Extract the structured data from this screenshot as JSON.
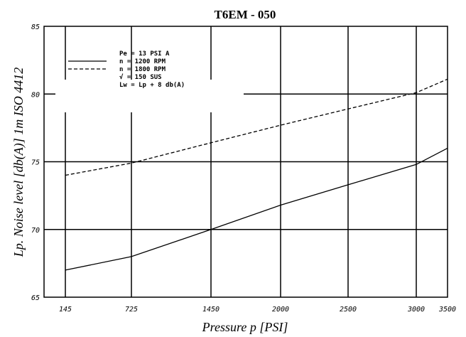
{
  "chart_data": {
    "type": "line",
    "title": "T6EM - 050",
    "xlabel": "Pressure p [PSI]",
    "ylabel": "Lp. Noise level [db(A)] 1m ISO 4412",
    "x_categories": [
      "145",
      "725",
      "1450",
      "2000",
      "2500",
      "3000",
      "3500"
    ],
    "ylim": [
      65,
      85
    ],
    "yticks": [
      "65",
      "70",
      "75",
      "80",
      "85"
    ],
    "grid": true,
    "legend_position": "top-left",
    "legend": [
      "Pe = 13 PSI A",
      "n  = 1200 RPM",
      "n  = 1800 RPM",
      "√  = 150 SUS",
      "Lw = Lp + 8 db(A)"
    ],
    "series": [
      {
        "name": "n = 1200 RPM",
        "style": "solid",
        "values": [
          67.0,
          68.0,
          70.0,
          71.8,
          73.3,
          74.8,
          76.0
        ]
      },
      {
        "name": "n = 1800 RPM",
        "style": "dashed",
        "values": [
          74.0,
          74.9,
          76.4,
          77.7,
          78.9,
          80.1,
          81.1
        ]
      }
    ]
  }
}
